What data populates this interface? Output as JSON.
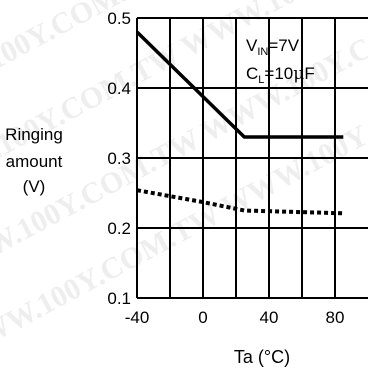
{
  "chart_data": {
    "type": "line",
    "title": "",
    "xlabel": "Ta (°C)",
    "ylabel_lines": [
      "Ringing",
      "amount",
      "(V)"
    ],
    "xlim": [
      -40,
      100
    ],
    "ylim": [
      0.1,
      0.5
    ],
    "x_ticks": [
      -40,
      0,
      40,
      80
    ],
    "x_tick_labels": [
      "-40",
      "0",
      "40",
      "80"
    ],
    "y_ticks": [
      0.1,
      0.2,
      0.3,
      0.4,
      0.5
    ],
    "y_tick_labels": [
      "0.1",
      "0.2",
      "0.3",
      "0.4",
      "0.5"
    ],
    "grid": true,
    "conditions": {
      "vin": {
        "text": "V",
        "sub": "IN",
        "tail": "=7V"
      },
      "cl": {
        "text": "C",
        "sub": "L",
        "tail": "=10",
        "mu": "μ",
        "unit": "F"
      }
    },
    "series": [
      {
        "style": "solid",
        "color": "#000000",
        "x": [
          -40,
          25,
          85
        ],
        "y": [
          0.48,
          0.33,
          0.33
        ]
      },
      {
        "style": "dotted",
        "color": "#000000",
        "x": [
          -40,
          0,
          25,
          85
        ],
        "y": [
          0.254,
          0.237,
          0.225,
          0.221
        ]
      }
    ]
  },
  "watermark_text": "WWW.100Y.COM.TW"
}
